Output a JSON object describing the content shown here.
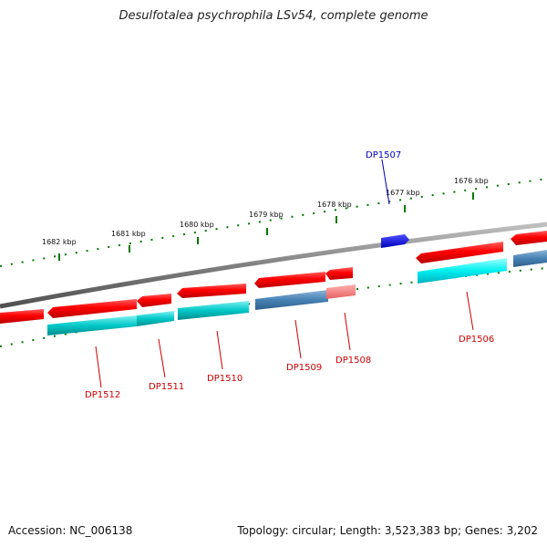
{
  "title": "Desulfotalea psychrophila LSv54, complete genome",
  "footer": {
    "accession": "Accession: NC_006138",
    "topology": "Topology: circular; Length: 3,523,383 bp; Genes: 3,202"
  },
  "ticks": [
    {
      "label": "1682 kbp"
    },
    {
      "label": "1681 kbp"
    },
    {
      "label": "1680 kbp"
    },
    {
      "label": "1679 kbp"
    },
    {
      "label": "1678 kbp"
    },
    {
      "label": "1677 kbp"
    },
    {
      "label": "1676 kbp"
    }
  ],
  "genes": [
    {
      "label": "DP1512",
      "color": "#cc0000"
    },
    {
      "label": "DP1511",
      "color": "#cc0000"
    },
    {
      "label": "DP1510",
      "color": "#cc0000"
    },
    {
      "label": "DP1509",
      "color": "#cc0000"
    },
    {
      "label": "DP1508",
      "color": "#cc0000"
    },
    {
      "label": "DP1507",
      "color": "#0000bb"
    },
    {
      "label": "DP1506",
      "color": "#cc0000"
    }
  ],
  "colors": {
    "cds": "#ff0000",
    "cds_light": "#ff8080",
    "feature_cyan": "#00cccc",
    "feature_steel": "#4682b4",
    "feature_blue": "#0000ee",
    "backbone": "#808080",
    "tick": "#007700"
  }
}
